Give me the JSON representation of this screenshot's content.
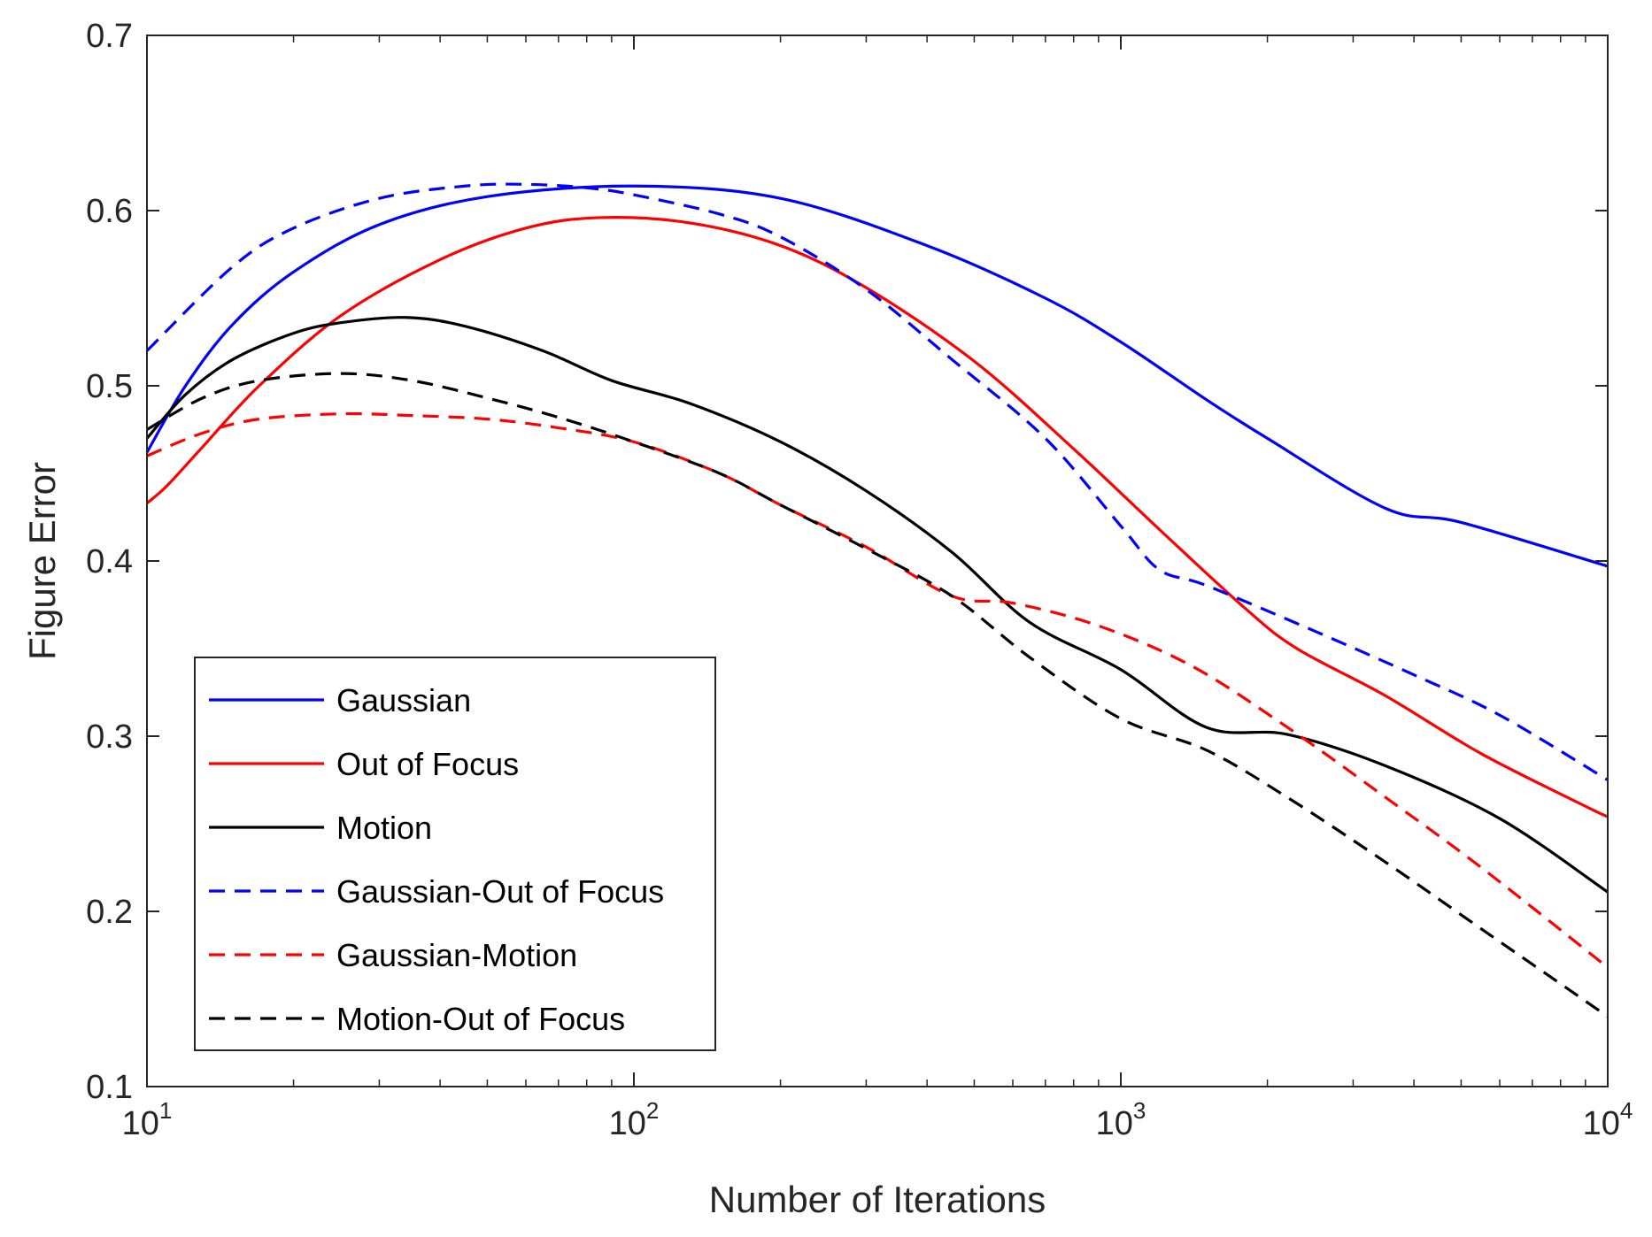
{
  "chart_data": {
    "type": "line",
    "title": "",
    "xlabel": "Number of Iterations",
    "ylabel": "Figure Error",
    "xscale": "log",
    "xlim": [
      10,
      10000
    ],
    "ylim": [
      0.1,
      0.7
    ],
    "grid": false,
    "legend_position": "bottom-left",
    "x_ticks": [
      {
        "value": 10,
        "base": "10",
        "exp": "1"
      },
      {
        "value": 100,
        "base": "10",
        "exp": "2"
      },
      {
        "value": 1000,
        "base": "10",
        "exp": "3"
      },
      {
        "value": 10000,
        "base": "10",
        "exp": "4"
      }
    ],
    "y_ticks": [
      {
        "value": 0.1,
        "label": "0.1"
      },
      {
        "value": 0.2,
        "label": "0.2"
      },
      {
        "value": 0.3,
        "label": "0.3"
      },
      {
        "value": 0.4,
        "label": "0.4"
      },
      {
        "value": 0.5,
        "label": "0.5"
      },
      {
        "value": 0.6,
        "label": "0.6"
      },
      {
        "value": 0.7,
        "label": "0.7"
      }
    ],
    "series": [
      {
        "name": "Gaussian",
        "color": "#0000ff",
        "dash": "solid",
        "x": [
          10,
          12,
          15,
          20,
          30,
          50,
          100,
          200,
          400,
          700,
          1000,
          1500,
          2000,
          3500,
          5000,
          10000
        ],
        "y": [
          0.462,
          0.5,
          0.535,
          0.565,
          0.592,
          0.608,
          0.614,
          0.607,
          0.58,
          0.55,
          0.525,
          0.492,
          0.47,
          0.43,
          0.422,
          0.397
        ]
      },
      {
        "name": "Out of Focus",
        "color": "#ff0000",
        "dash": "solid",
        "x": [
          10,
          11,
          13,
          17,
          25,
          40,
          60,
          85,
          130,
          200,
          300,
          500,
          800,
          1200,
          1800,
          2300,
          3500,
          5500,
          9000,
          10000
        ],
        "y": [
          0.433,
          0.443,
          0.465,
          0.5,
          0.54,
          0.572,
          0.59,
          0.596,
          0.593,
          0.58,
          0.556,
          0.514,
          0.464,
          0.418,
          0.373,
          0.35,
          0.323,
          0.29,
          0.26,
          0.254
        ]
      },
      {
        "name": "Motion",
        "color": "#000000",
        "dash": "solid",
        "x": [
          10,
          12,
          15,
          20,
          25,
          34,
          45,
          65,
          90,
          130,
          200,
          300,
          450,
          650,
          1000,
          1500,
          2200,
          3500,
          6000,
          10000
        ],
        "y": [
          0.47,
          0.495,
          0.515,
          0.53,
          0.536,
          0.539,
          0.534,
          0.52,
          0.503,
          0.49,
          0.468,
          0.44,
          0.405,
          0.365,
          0.338,
          0.305,
          0.301,
          0.283,
          0.253,
          0.211
        ]
      },
      {
        "name": "Gaussian-Out of Focus",
        "color": "#0000ff",
        "dash": "dashed",
        "x": [
          10,
          15,
          20,
          30,
          45,
          60,
          80,
          100,
          150,
          200,
          300,
          450,
          700,
          1000,
          1200,
          1500,
          2500,
          4000,
          6000,
          10000
        ],
        "y": [
          0.52,
          0.568,
          0.59,
          0.607,
          0.614,
          0.615,
          0.613,
          0.609,
          0.598,
          0.585,
          0.555,
          0.515,
          0.47,
          0.42,
          0.395,
          0.386,
          0.36,
          0.335,
          0.312,
          0.275
        ]
      },
      {
        "name": "Gaussian-Motion",
        "color": "#ff0000",
        "dash": "dashed",
        "x": [
          10,
          13,
          17,
          25,
          35,
          50,
          70,
          100,
          150,
          200,
          300,
          450,
          600,
          900,
          1400,
          2200,
          3500,
          5500,
          10000
        ],
        "y": [
          0.46,
          0.473,
          0.481,
          0.484,
          0.483,
          0.481,
          0.476,
          0.468,
          0.45,
          0.432,
          0.408,
          0.38,
          0.376,
          0.363,
          0.34,
          0.305,
          0.265,
          0.225,
          0.168
        ]
      },
      {
        "name": "Motion-Out of Focus",
        "color": "#000000",
        "dash": "dashed",
        "x": [
          10,
          13,
          17,
          25,
          35,
          50,
          70,
          100,
          150,
          200,
          300,
          450,
          650,
          1000,
          1500,
          2200,
          3500,
          5500,
          10000
        ],
        "y": [
          0.475,
          0.493,
          0.503,
          0.507,
          0.503,
          0.493,
          0.482,
          0.468,
          0.45,
          0.432,
          0.407,
          0.38,
          0.345,
          0.31,
          0.292,
          0.265,
          0.228,
          0.19,
          0.14
        ]
      }
    ]
  }
}
